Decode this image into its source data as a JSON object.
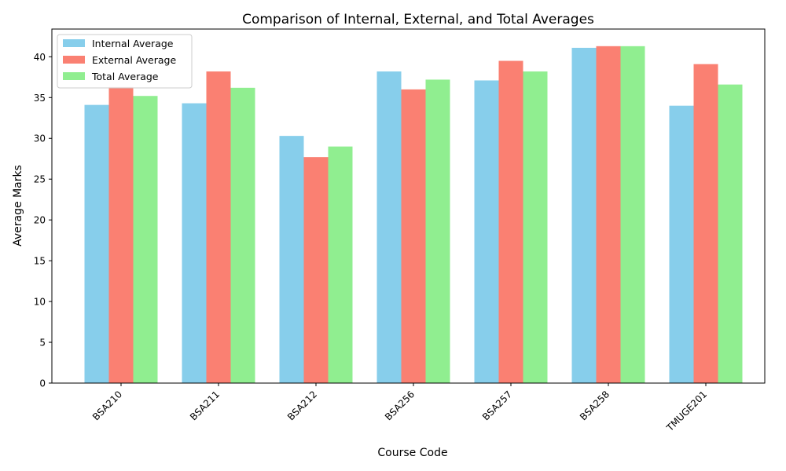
{
  "chart_data": {
    "type": "bar",
    "title": "Comparison of Internal, External, and Total Averages",
    "xlabel": "Course Code",
    "ylabel": "Average Marks",
    "categories": [
      "BSA210",
      "BSA211",
      "BSA212",
      "BSA256",
      "BSA257",
      "BSA258",
      "TMUGE201"
    ],
    "series": [
      {
        "name": "Internal Average",
        "color": "#87ceeb",
        "values": [
          34.1,
          34.3,
          30.3,
          38.2,
          37.1,
          41.1,
          34.0
        ]
      },
      {
        "name": "External Average",
        "color": "#fa8072",
        "values": [
          36.3,
          38.2,
          27.7,
          36.0,
          39.5,
          41.3,
          39.1
        ]
      },
      {
        "name": "Total Average",
        "color": "#90ee90",
        "values": [
          35.2,
          36.2,
          29.0,
          37.2,
          38.2,
          41.3,
          36.6
        ]
      }
    ],
    "yticks": [
      0,
      5,
      10,
      15,
      20,
      25,
      30,
      35,
      40
    ],
    "ylim": [
      0,
      43.4
    ],
    "legend_position": "top-left",
    "grid": false
  }
}
